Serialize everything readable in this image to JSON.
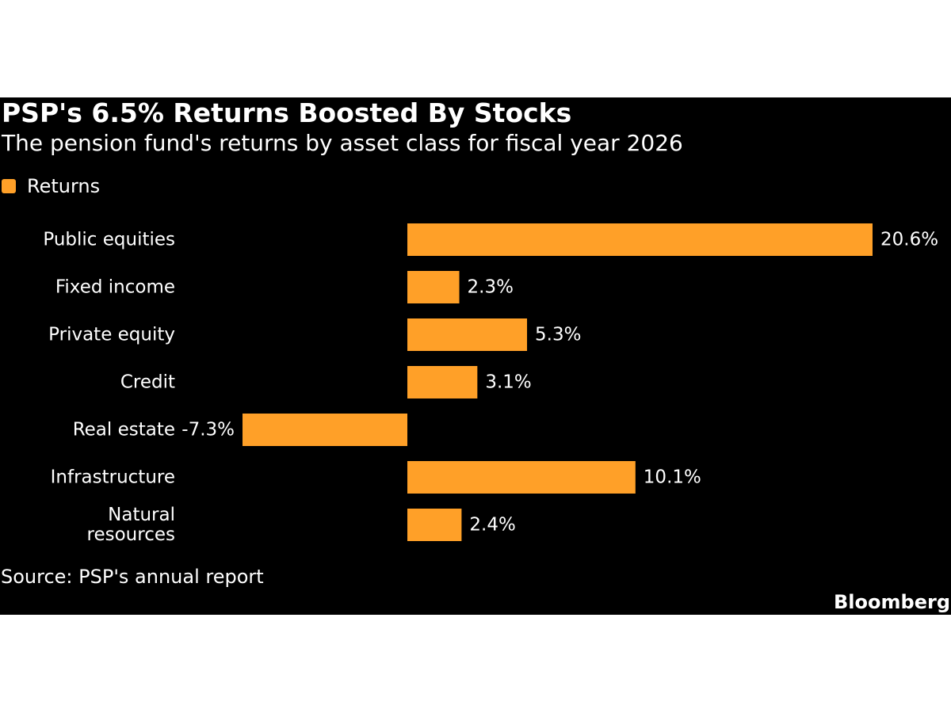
{
  "header": {
    "title": "PSP's 6.5% Returns Boosted By Stocks",
    "subtitle": "The pension fund's returns by asset class for fiscal year 2026"
  },
  "legend": {
    "label": "Returns"
  },
  "footer": {
    "source": "Source: PSP's annual report",
    "brand": "Bloomberg"
  },
  "colors": {
    "background": "#000000",
    "bar": "#FFA028",
    "text": "#FFFFFF"
  },
  "chart_data": {
    "type": "bar",
    "orientation": "horizontal",
    "title": "PSP's 6.5% Returns Boosted By Stocks",
    "subtitle": "The pension fund's returns by asset class for fiscal year 2026",
    "categories": [
      [
        "Public equities"
      ],
      [
        "Fixed income"
      ],
      [
        "Private equity"
      ],
      [
        "Credit"
      ],
      [
        "Real estate"
      ],
      [
        "Infrastructure"
      ],
      [
        "Natural",
        "resources"
      ]
    ],
    "series": [
      {
        "name": "Returns",
        "values": [
          20.6,
          2.3,
          5.3,
          3.1,
          -7.3,
          10.1,
          2.4
        ],
        "labels": [
          "20.6%",
          "2.3%",
          "5.3%",
          "3.1%",
          "-7.3%",
          "10.1%",
          "2.4%"
        ]
      }
    ],
    "xlim": [
      -7.3,
      20.6
    ],
    "grid": false,
    "legend_position": "top-left"
  }
}
